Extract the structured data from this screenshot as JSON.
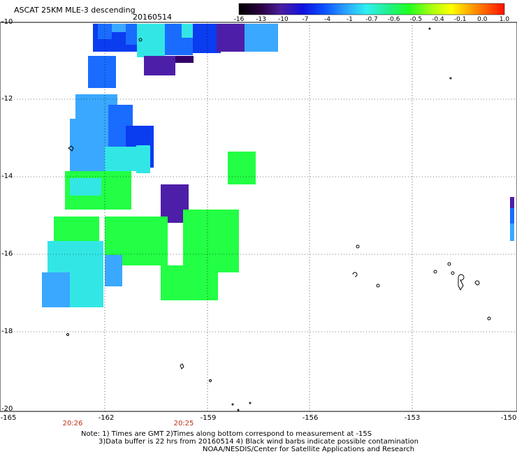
{
  "header": {
    "title": "ASCAT 25KM MLE-3 descending",
    "date": "20160514"
  },
  "colorbar": {
    "ticks": [
      "-16",
      "-13",
      "-10",
      "-7",
      "-4",
      "-1",
      "-0.7",
      "-0.6",
      "-0.5",
      "-0.4",
      "-0.1",
      "0.0",
      "1.0"
    ]
  },
  "axes": {
    "y_ticks": [
      "-10",
      "-12",
      "-14",
      "-16",
      "-18",
      "-20"
    ],
    "x_ticks": [
      "-165",
      "-162",
      "-159",
      "-156",
      "-153",
      "-150"
    ]
  },
  "times": [
    "20:26",
    "20:25"
  ],
  "notes": {
    "line1": "Note: 1) Times are GMT 2)Times along bottom correspond to measurement at -15S",
    "line2": "3)Data buffer is 22 hrs from 20160514 4) Black wind barbs indicate possible contamination",
    "line3": "NOAA/NESDIS/Center for Satellite Applications and Research"
  },
  "colors": {
    "dark_purple": "#330066",
    "indigo": "#4d1fa8",
    "blue": "#0a3cf0",
    "mid_blue": "#1a6cff",
    "sky": "#3aa8ff",
    "cyan": "#33e6e6",
    "green": "#22ff44",
    "time_label": "#c0301a"
  }
}
